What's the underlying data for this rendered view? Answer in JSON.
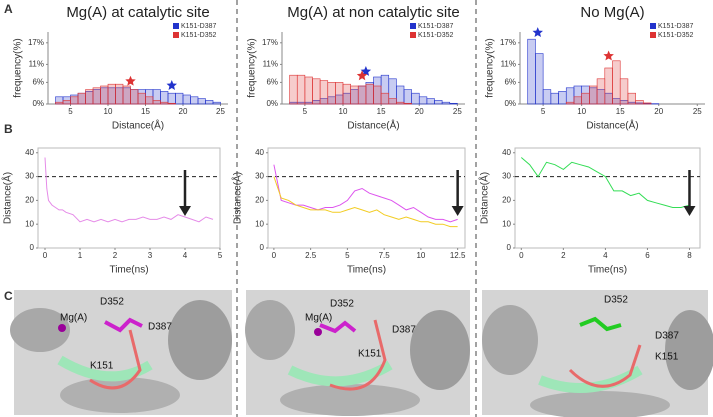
{
  "panel_labels": [
    "A",
    "B",
    "C"
  ],
  "chart_data": [
    {
      "type": "histogram",
      "title": "Mg(A) at catalytic site",
      "xlabel": "Distance(Å)",
      "ylabel": "frequency(%)",
      "legend": "upper right",
      "bins": [
        3,
        4,
        5,
        6,
        7,
        8,
        9,
        10,
        11,
        12,
        13,
        14,
        15,
        16,
        17,
        18,
        19,
        20,
        21,
        22,
        23,
        24,
        25
      ],
      "xlim": [
        2,
        26
      ],
      "xticks": [
        5,
        10,
        15,
        20,
        25
      ],
      "ylim": [
        0,
        20
      ],
      "yticks": [
        {
          "value": 0,
          "label": "0%"
        },
        {
          "value": 6,
          "label": "6%"
        },
        {
          "value": 11,
          "label": "11%"
        },
        {
          "value": 17,
          "label": "17%"
        }
      ],
      "series": [
        {
          "name": "K151-D387",
          "color": "#2233cc",
          "values": [
            2,
            2,
            2.5,
            3,
            3.5,
            4,
            4.5,
            4.5,
            4.5,
            4.5,
            4,
            4,
            4,
            4,
            3.5,
            3,
            3,
            2.5,
            2,
            1.5,
            1,
            0.5
          ],
          "peak_x": 18.5,
          "peak_y": 4.3
        },
        {
          "name": "K151-D352",
          "color": "#dd3333",
          "values": [
            0.5,
            1,
            2,
            3,
            4,
            4.5,
            5,
            5.5,
            5.5,
            5,
            4,
            3,
            2,
            1,
            0.5,
            0.2,
            0,
            0,
            0,
            0,
            0,
            0
          ],
          "peak_x": 13,
          "peak_y": 5.5
        }
      ]
    },
    {
      "type": "histogram",
      "title": "Mg(A) at non catalytic site",
      "xlabel": "Distance(Å)",
      "ylabel": "frequency(%)",
      "legend": "upper right",
      "bins": [
        3,
        4,
        5,
        6,
        7,
        8,
        9,
        10,
        11,
        12,
        13,
        14,
        15,
        16,
        17,
        18,
        19,
        20,
        21,
        22,
        23,
        24,
        25
      ],
      "xlim": [
        2,
        26
      ],
      "xticks": [
        5,
        10,
        15,
        20,
        25
      ],
      "ylim": [
        0,
        20
      ],
      "yticks": [
        {
          "value": 0,
          "label": "0%"
        },
        {
          "value": 6,
          "label": "6%"
        },
        {
          "value": 11,
          "label": "11%"
        },
        {
          "value": 17,
          "label": "17%"
        }
      ],
      "series": [
        {
          "name": "K151-D387",
          "color": "#2233cc",
          "values": [
            0.5,
            0.5,
            0.5,
            1,
            1.5,
            2,
            2.5,
            3,
            4,
            5,
            6,
            7.5,
            8,
            7,
            5,
            4,
            3,
            2,
            1.5,
            1,
            0.5,
            0.2
          ],
          "peak_x": 13,
          "peak_y": 8.2
        },
        {
          "name": "K151-D352",
          "color": "#dd3333",
          "values": [
            8,
            8,
            7.5,
            7,
            6.5,
            6,
            6,
            5.5,
            5,
            5,
            5.5,
            5,
            3,
            1.5,
            0.5,
            0.2,
            0,
            0,
            0,
            0,
            0,
            0
          ],
          "peak_x": 12.5,
          "peak_y": 7
        }
      ]
    },
    {
      "type": "histogram",
      "title": "No Mg(A)",
      "xlabel": "Distance(Å)",
      "ylabel": "frequency(%)",
      "legend": "upper right",
      "bins": [
        3,
        4,
        5,
        6,
        7,
        8,
        9,
        10,
        11,
        12,
        13,
        14,
        15,
        16,
        17,
        18,
        19,
        20,
        21,
        22,
        23,
        24,
        25
      ],
      "xlim": [
        2,
        26
      ],
      "xticks": [
        5,
        10,
        15,
        20,
        25
      ],
      "ylim": [
        0,
        20
      ],
      "yticks": [
        {
          "value": 0,
          "label": "0%"
        },
        {
          "value": 6,
          "label": "6%"
        },
        {
          "value": 11,
          "label": "11%"
        },
        {
          "value": 17,
          "label": "17%"
        }
      ],
      "series": [
        {
          "name": "K151-D387",
          "color": "#2233cc",
          "values": [
            18,
            14,
            4,
            3,
            3.5,
            4.5,
            5,
            5,
            4.5,
            4,
            3,
            1.5,
            1,
            0.5,
            0.3,
            0.2,
            0.1,
            0,
            0,
            0,
            0,
            0
          ],
          "peak_x": 4.3,
          "peak_y": 19
        },
        {
          "name": "K151-D352",
          "color": "#dd3333",
          "values": [
            0,
            0,
            0,
            0,
            0,
            0.5,
            2,
            3,
            5,
            7,
            10,
            12,
            7,
            3,
            1,
            0.3,
            0,
            0,
            0,
            0,
            0,
            0
          ],
          "peak_x": 13.5,
          "peak_y": 12.5
        }
      ]
    },
    {
      "type": "line",
      "xlabel": "Time(ns)",
      "ylabel": "Distance(Å)",
      "hline": 30,
      "arrow_x": 4,
      "xlim": [
        -0.2,
        5
      ],
      "xticks": [
        0,
        1,
        2,
        3,
        4,
        5
      ],
      "ylim": [
        0,
        42
      ],
      "yticks": [
        0,
        10,
        20,
        30,
        40
      ],
      "x": [
        0,
        0.05,
        0.1,
        0.2,
        0.3,
        0.4,
        0.5,
        0.6,
        0.8,
        1.0,
        1.2,
        1.4,
        1.6,
        1.8,
        2.0,
        2.2,
        2.4,
        2.6,
        2.8,
        3.0,
        3.2,
        3.4,
        3.6,
        3.8,
        4.0,
        4.2,
        4.4,
        4.6,
        4.8
      ],
      "series": [
        {
          "color": "#e58be8",
          "values": [
            38,
            25,
            20,
            18,
            17,
            16,
            16,
            15,
            14,
            11,
            12,
            11,
            12,
            11,
            12,
            11,
            12,
            12,
            13,
            12,
            12,
            13,
            12,
            14,
            13,
            12,
            11,
            13,
            12
          ]
        }
      ]
    },
    {
      "type": "line",
      "xlabel": "Time(ns)",
      "ylabel": "Distance(Å)",
      "hline": 30,
      "arrow_x": 12.5,
      "xlim": [
        -0.4,
        13
      ],
      "xticks": [
        0,
        2.5,
        5,
        7.5,
        10,
        12.5
      ],
      "ylim": [
        0,
        42
      ],
      "yticks": [
        0,
        10,
        20,
        30,
        40
      ],
      "x": [
        0,
        0.5,
        1,
        1.5,
        2,
        2.5,
        3,
        3.5,
        4,
        4.5,
        5,
        5.5,
        6,
        6.5,
        7,
        7.5,
        8,
        8.5,
        9,
        9.5,
        10,
        10.5,
        11,
        11.5,
        12,
        12.5
      ],
      "series": [
        {
          "color": "#dd55ee",
          "values": [
            35,
            20,
            19,
            18,
            18,
            17,
            16,
            17,
            17,
            18,
            20,
            24,
            25,
            23,
            22,
            21,
            20,
            18,
            16,
            17,
            15,
            13,
            12,
            12,
            11,
            12
          ]
        },
        {
          "color": "#f2cc22",
          "values": [
            30,
            21,
            20,
            18,
            17,
            16,
            16,
            16,
            15,
            15,
            16,
            17,
            16,
            15,
            16,
            14,
            13,
            12,
            13,
            12,
            11,
            11,
            10,
            10,
            9,
            9
          ]
        }
      ]
    },
    {
      "type": "line",
      "xlabel": "Time(ns)",
      "ylabel": "Distance(Å)",
      "hline": 30,
      "arrow_x": 8,
      "xlim": [
        -0.3,
        8.5
      ],
      "xticks": [
        0,
        2,
        4,
        6,
        8
      ],
      "ylim": [
        0,
        42
      ],
      "yticks": [
        0,
        10,
        20,
        30,
        40
      ],
      "x": [
        0,
        0.4,
        0.8,
        1.2,
        1.6,
        2.0,
        2.4,
        2.8,
        3.2,
        3.6,
        4.0,
        4.4,
        4.8,
        5.2,
        5.6,
        6.0,
        6.4,
        6.8,
        7.2,
        7.6,
        8.0
      ],
      "series": [
        {
          "color": "#33dd55",
          "values": [
            38,
            35,
            30,
            36,
            35,
            33,
            36,
            35,
            34,
            32,
            30,
            24,
            24,
            22,
            23,
            20,
            19,
            18,
            17,
            17,
            18
          ]
        }
      ]
    }
  ],
  "structures": [
    {
      "labels": [
        "D352",
        "Mg(A)",
        "D387",
        "K151"
      ]
    },
    {
      "labels": [
        "D352",
        "Mg(A)",
        "D387",
        "K151"
      ]
    },
    {
      "labels": [
        "D352",
        "D387",
        "K151"
      ]
    }
  ]
}
